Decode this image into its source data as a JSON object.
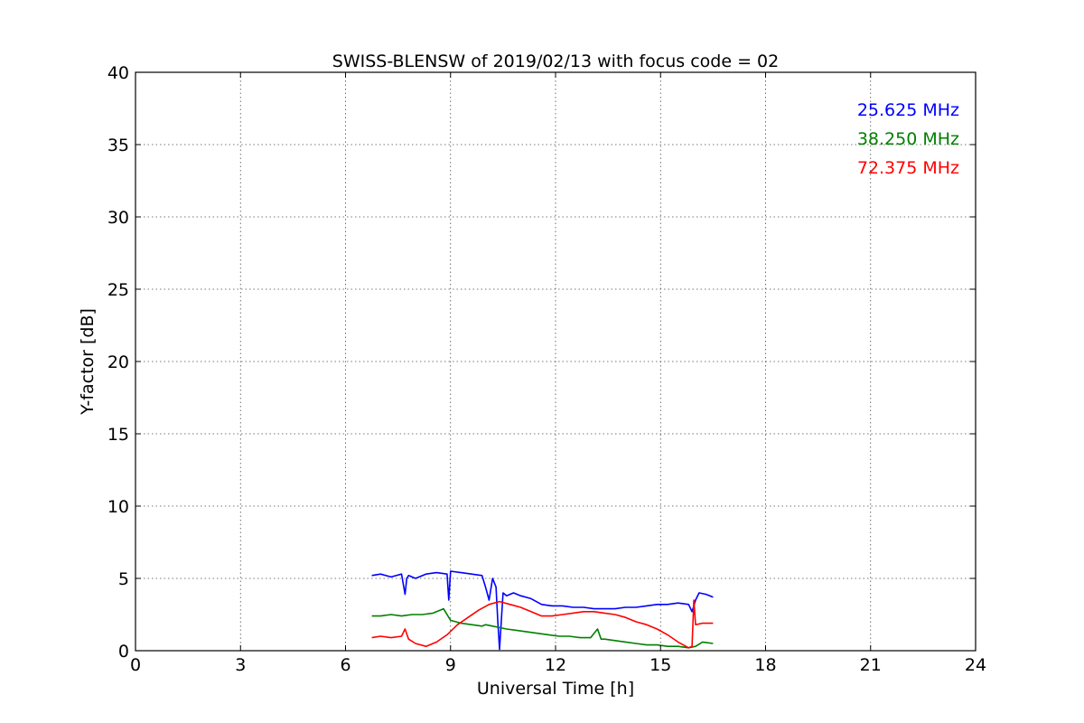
{
  "chart_data": {
    "type": "line",
    "title": "SWISS-BLENSW of 2019/02/13 with focus code = 02",
    "xlabel": "Universal Time [h]",
    "ylabel": "Y-factor [dB]",
    "xlim": [
      0,
      24
    ],
    "ylim": [
      0,
      40
    ],
    "xticks": [
      0,
      3,
      6,
      9,
      12,
      15,
      18,
      21,
      24
    ],
    "yticks": [
      0,
      5,
      10,
      15,
      20,
      25,
      30,
      35,
      40
    ],
    "grid": true,
    "legend_position": "top-right",
    "series": [
      {
        "name": "25.625 MHz",
        "color": "#0000ff",
        "x": [
          6.75,
          7.0,
          7.3,
          7.6,
          7.7,
          7.75,
          7.8,
          8.0,
          8.3,
          8.6,
          8.9,
          8.95,
          9.0,
          9.3,
          9.6,
          9.9,
          10.0,
          10.1,
          10.2,
          10.3,
          10.35,
          10.4,
          10.5,
          10.6,
          10.8,
          11.0,
          11.3,
          11.6,
          11.9,
          12.2,
          12.5,
          12.8,
          13.1,
          13.4,
          13.7,
          14.0,
          14.3,
          14.6,
          14.9,
          15.2,
          15.5,
          15.8,
          15.9,
          16.0,
          16.1,
          16.3,
          16.5
        ],
        "y": [
          5.2,
          5.3,
          5.1,
          5.3,
          3.9,
          5.0,
          5.2,
          5.0,
          5.3,
          5.4,
          5.3,
          3.5,
          5.5,
          5.4,
          5.3,
          5.2,
          4.4,
          3.5,
          5.0,
          4.4,
          2.0,
          0.1,
          4.0,
          3.8,
          4.0,
          3.8,
          3.6,
          3.2,
          3.1,
          3.1,
          3.0,
          3.0,
          2.9,
          2.9,
          2.9,
          3.0,
          3.0,
          3.1,
          3.2,
          3.2,
          3.3,
          3.2,
          2.7,
          3.5,
          4.0,
          3.9,
          3.7
        ]
      },
      {
        "name": "38.250 MHz",
        "color": "#008000",
        "x": [
          6.75,
          7.0,
          7.3,
          7.6,
          7.9,
          8.2,
          8.5,
          8.8,
          9.0,
          9.3,
          9.6,
          9.9,
          10.0,
          10.2,
          10.4,
          10.6,
          10.9,
          11.2,
          11.5,
          11.8,
          12.1,
          12.4,
          12.7,
          13.0,
          13.2,
          13.3,
          13.4,
          13.7,
          14.0,
          14.3,
          14.6,
          14.9,
          15.2,
          15.5,
          15.8,
          16.0,
          16.2,
          16.5
        ],
        "y": [
          2.4,
          2.4,
          2.5,
          2.4,
          2.5,
          2.5,
          2.6,
          2.9,
          2.1,
          1.9,
          1.8,
          1.7,
          1.8,
          1.7,
          1.6,
          1.5,
          1.4,
          1.3,
          1.2,
          1.1,
          1.0,
          1.0,
          0.9,
          0.9,
          1.5,
          0.8,
          0.8,
          0.7,
          0.6,
          0.5,
          0.4,
          0.4,
          0.3,
          0.3,
          0.2,
          0.3,
          0.6,
          0.5
        ]
      },
      {
        "name": "72.375 MHz",
        "color": "#ff0000",
        "x": [
          6.75,
          7.0,
          7.3,
          7.6,
          7.7,
          7.8,
          8.0,
          8.3,
          8.6,
          8.9,
          9.2,
          9.5,
          9.8,
          10.1,
          10.4,
          10.7,
          11.0,
          11.3,
          11.6,
          11.9,
          12.2,
          12.5,
          12.8,
          13.1,
          13.4,
          13.7,
          14.0,
          14.3,
          14.6,
          14.9,
          15.2,
          15.5,
          15.8,
          15.9,
          15.95,
          16.0,
          16.2,
          16.5
        ],
        "y": [
          0.9,
          1.0,
          0.9,
          1.0,
          1.5,
          0.8,
          0.5,
          0.3,
          0.6,
          1.1,
          1.8,
          2.3,
          2.8,
          3.2,
          3.4,
          3.2,
          3.0,
          2.7,
          2.4,
          2.4,
          2.5,
          2.6,
          2.7,
          2.7,
          2.6,
          2.5,
          2.3,
          2.0,
          1.8,
          1.5,
          1.1,
          0.6,
          0.2,
          0.3,
          3.5,
          1.8,
          1.9,
          1.9
        ]
      }
    ]
  }
}
